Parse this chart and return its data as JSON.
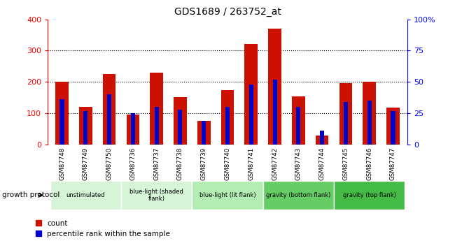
{
  "title": "GDS1689 / 263752_at",
  "samples": [
    "GSM87748",
    "GSM87749",
    "GSM87750",
    "GSM87736",
    "GSM87737",
    "GSM87738",
    "GSM87739",
    "GSM87740",
    "GSM87741",
    "GSM87742",
    "GSM87743",
    "GSM87744",
    "GSM87745",
    "GSM87746",
    "GSM87747"
  ],
  "count_values": [
    200,
    120,
    225,
    95,
    230,
    152,
    75,
    173,
    322,
    370,
    153,
    28,
    197,
    200,
    118
  ],
  "percentile_values": [
    36,
    27,
    40,
    25,
    30,
    28,
    19,
    30,
    48,
    52,
    30,
    11,
    34,
    35,
    27
  ],
  "groups": [
    {
      "label": "unstimulated",
      "indices": [
        0,
        1,
        2
      ],
      "color": "#d6f5d6"
    },
    {
      "label": "blue-light (shaded\nflank)",
      "indices": [
        3,
        4,
        5
      ],
      "color": "#d6f5d6"
    },
    {
      "label": "blue-light (lit flank)",
      "indices": [
        6,
        7,
        8
      ],
      "color": "#b3edb3"
    },
    {
      "label": "gravity (bottom flank)",
      "indices": [
        9,
        10,
        11
      ],
      "color": "#66cc66"
    },
    {
      "label": "gravity (top flank)",
      "indices": [
        12,
        13,
        14
      ],
      "color": "#44bb44"
    }
  ],
  "ylim_left": [
    0,
    400
  ],
  "ylim_right": [
    0,
    100
  ],
  "yticks_left": [
    0,
    100,
    200,
    300,
    400
  ],
  "yticks_right": [
    0,
    25,
    50,
    75,
    100
  ],
  "ytick_labels_right": [
    "0",
    "25",
    "50",
    "75",
    "100%"
  ],
  "bar_color_red": "#cc1100",
  "bar_color_blue": "#0000cc",
  "bar_width": 0.55,
  "blue_bar_width": 0.18,
  "blue_square_size": 12,
  "legend_count_label": "count",
  "legend_pct_label": "percentile rank within the sample",
  "growth_protocol_label": "growth protocol",
  "sample_bg_color": "#cccccc",
  "grid_color": "black",
  "grid_linestyle": "dotted",
  "grid_linewidth": 0.8
}
